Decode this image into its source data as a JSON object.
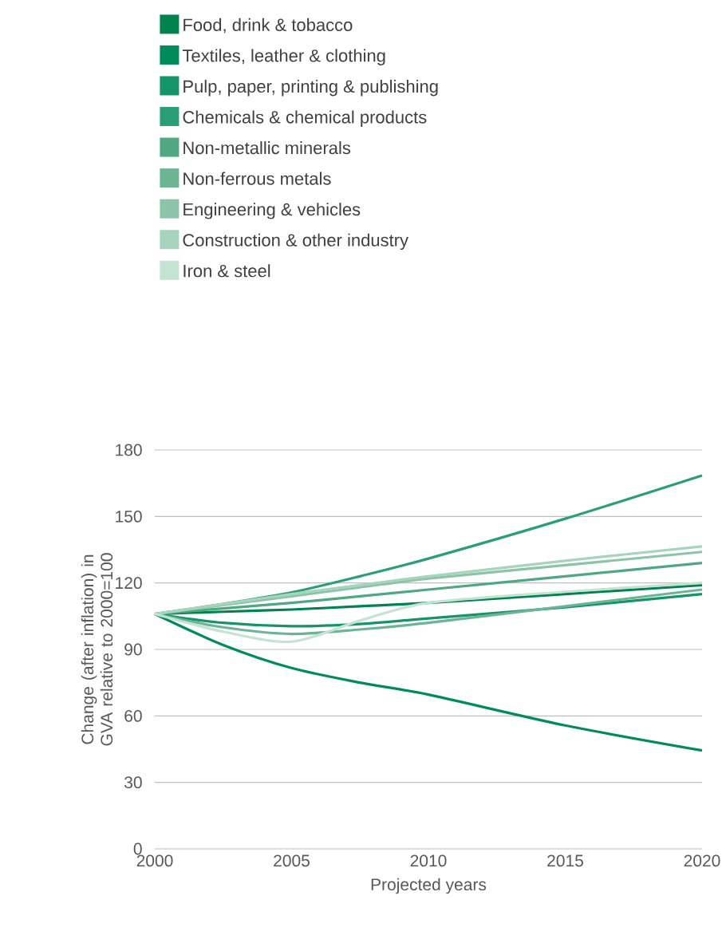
{
  "chart_data": {
    "type": "line",
    "xlabel": "Projected years",
    "ylabel": "Change (after inflation) in GVA relative to 2000=100",
    "x": [
      2000,
      2002.5,
      2005,
      2007.5,
      2010,
      2015,
      2020
    ],
    "xlim": [
      2000,
      2020
    ],
    "xticks": [
      2000,
      2005,
      2010,
      2015,
      2020
    ],
    "ylim": [
      0,
      180
    ],
    "yticks": [
      0,
      30,
      60,
      90,
      120,
      150,
      180
    ],
    "grid": "y",
    "legend": "top left",
    "line_style": "solid",
    "marker": "none",
    "series": [
      {
        "name": "Food, drink & tobacco",
        "color": "#00834f",
        "values": [
          106,
          107,
          108,
          109.5,
          111,
          115,
          119
        ]
      },
      {
        "name": "Textiles, leather & clothing",
        "color": "#008c5a",
        "values": [
          106,
          92,
          81.6,
          75,
          69.6,
          55.7,
          44.4
        ]
      },
      {
        "name": "Pulp, paper, printing & publishing",
        "color": "#169469",
        "values": [
          106,
          102,
          100.5,
          101.5,
          104,
          109,
          115
        ]
      },
      {
        "name": "Chemicals & chemical products",
        "color": "#2a9f77",
        "values": [
          106,
          110.5,
          115.7,
          123,
          131,
          149,
          168.5
        ]
      },
      {
        "name": "Non-metallic minerals",
        "color": "#4fa882",
        "values": [
          106,
          108.5,
          111,
          114,
          117,
          123,
          129
        ]
      },
      {
        "name": "Non-ferrous metals",
        "color": "#6cb594",
        "values": [
          106,
          100,
          97,
          99,
          102,
          109.5,
          117
        ]
      },
      {
        "name": "Engineering & vehicles",
        "color": "#8cc4a8",
        "values": [
          106,
          110,
          114,
          118,
          122,
          128,
          134
        ]
      },
      {
        "name": "Construction & other industry",
        "color": "#a7d4bd",
        "values": [
          106,
          110.5,
          115,
          119,
          123,
          130,
          136.5
        ]
      },
      {
        "name": "Iron & steel",
        "color": "#c4e3d3",
        "values": [
          106,
          98,
          93.5,
          103,
          111,
          116,
          120
        ]
      }
    ]
  }
}
